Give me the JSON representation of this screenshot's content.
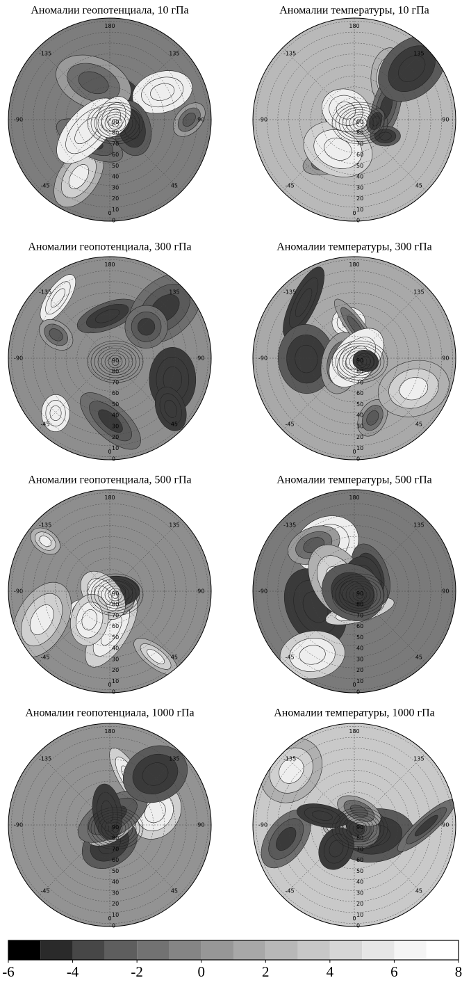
{
  "panels": [
    {
      "title": "Аномалии геопотенциала, 10 гПа",
      "fill": "#7d7d7d"
    },
    {
      "title": "Аномалии температуры, 10 гПа",
      "fill": "#b9b9b9"
    },
    {
      "title": "Аномалии геопотенциала, 300 гПа",
      "fill": "#8e8e8e"
    },
    {
      "title": "Аномалии температуры, 300 гПа",
      "fill": "#a9a9a9"
    },
    {
      "title": "Аномалии геопотенциала, 500 гПа",
      "fill": "#8e8e8e"
    },
    {
      "title": "Аномалии температуры, 500 гПа",
      "fill": "#7a7a7a"
    },
    {
      "title": "Аномалии геопотенциала, 1000 гПа",
      "fill": "#939393"
    },
    {
      "title": "Аномалии температуры, 1000 гПа",
      "fill": "#c9c9c9"
    }
  ],
  "map_labels": {
    "lon": [
      "180",
      "-135",
      "135",
      "-90",
      "90",
      "-45",
      "45",
      "0"
    ],
    "lat": [
      "90",
      "80",
      "70",
      "60",
      "50",
      "40",
      "30",
      "20",
      "10",
      "0"
    ]
  },
  "colorbar": {
    "type": "colorbar",
    "xlim": [
      -6,
      8
    ],
    "xticks": [
      -6,
      -4,
      -2,
      0,
      2,
      4,
      6,
      8
    ],
    "colors": [
      "#000000",
      "#2a2a2a",
      "#474747",
      "#5e5e5e",
      "#727272",
      "#858585",
      "#979797",
      "#a8a8a8",
      "#b8b8b8",
      "#c7c7c7",
      "#d6d6d6",
      "#e6e6e6",
      "#f5f5f5",
      "#ffffff"
    ]
  }
}
